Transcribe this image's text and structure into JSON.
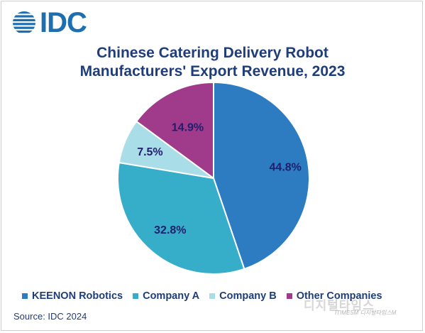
{
  "logo": {
    "text": "IDC",
    "icon": "globe-stripes-icon",
    "color": "#1e6fb0"
  },
  "chart_data": {
    "type": "pie",
    "title_line1": "Chinese Catering Delivery Robot",
    "title_line2": "Manufacturers' Export Revenue, 2023",
    "categories": [
      "KEENON Robotics",
      "Company A",
      "Company B",
      "Other Companies"
    ],
    "values": [
      44.8,
      32.8,
      7.5,
      14.9
    ],
    "labels": [
      "44.8%",
      "32.8%",
      "7.5%",
      "14.9%"
    ],
    "colors": [
      "#2d7cc1",
      "#36adc9",
      "#a9dde8",
      "#a03a8a"
    ],
    "legend_position": "bottom"
  },
  "source": "Source: IDC 2024",
  "watermark": {
    "main": "디지털타임스",
    "sub": "ITIMESM 디지털타임스M"
  }
}
